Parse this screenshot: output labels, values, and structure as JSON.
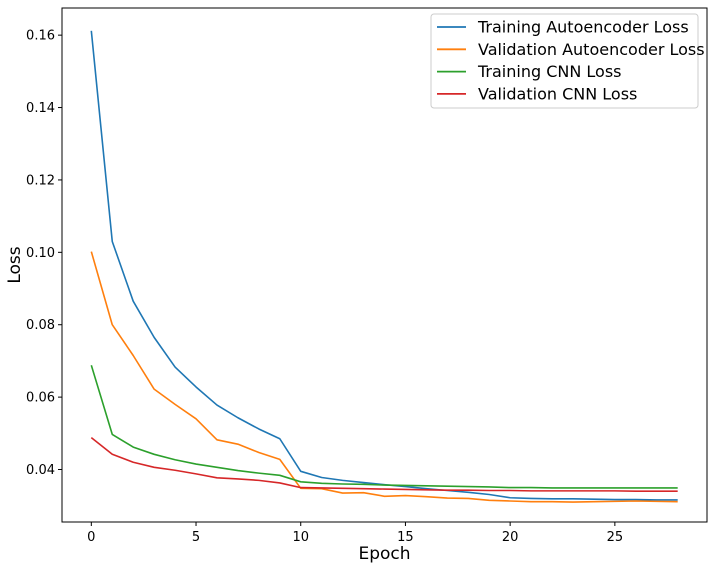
{
  "chart_data": {
    "type": "line",
    "xlabel": "Epoch",
    "ylabel": "Loss",
    "xlim": [
      -1.4,
      29.4
    ],
    "ylim": [
      0.0255,
      0.1675
    ],
    "xticks": [
      0,
      5,
      10,
      15,
      20,
      25
    ],
    "yticks": [
      0.04,
      0.06,
      0.08,
      0.1,
      0.12,
      0.14,
      0.16
    ],
    "grid": false,
    "legend_position": "top-right",
    "x": [
      0,
      1,
      2,
      3,
      4,
      5,
      6,
      7,
      8,
      9,
      10,
      11,
      12,
      13,
      14,
      15,
      16,
      17,
      18,
      19,
      20,
      21,
      22,
      23,
      24,
      25,
      26,
      27,
      28
    ],
    "series": [
      {
        "name": "Training Autoencoder Loss",
        "color": "#1f77b4",
        "values": [
          0.1612,
          0.103,
          0.0865,
          0.0765,
          0.0683,
          0.0628,
          0.0578,
          0.0543,
          0.0512,
          0.0485,
          0.0395,
          0.0378,
          0.037,
          0.0364,
          0.0358,
          0.0353,
          0.0347,
          0.0342,
          0.0337,
          0.0331,
          0.0322,
          0.032,
          0.0319,
          0.0319,
          0.0318,
          0.0317,
          0.0317,
          0.0316,
          0.0316
        ]
      },
      {
        "name": "Validation Autoencoder Loss",
        "color": "#ff7f0e",
        "values": [
          0.1002,
          0.08,
          0.0715,
          0.0622,
          0.058,
          0.054,
          0.0482,
          0.047,
          0.0447,
          0.0428,
          0.0348,
          0.0347,
          0.0335,
          0.0336,
          0.0326,
          0.0328,
          0.0325,
          0.0321,
          0.032,
          0.0315,
          0.0313,
          0.0311,
          0.0311,
          0.031,
          0.0311,
          0.0312,
          0.0313,
          0.0312,
          0.0311
        ]
      },
      {
        "name": "Training CNN Loss",
        "color": "#2ca02c",
        "values": [
          0.0688,
          0.0497,
          0.0462,
          0.0442,
          0.0427,
          0.0415,
          0.0406,
          0.0397,
          0.039,
          0.0384,
          0.0366,
          0.0362,
          0.036,
          0.0359,
          0.0357,
          0.0356,
          0.0355,
          0.0354,
          0.0353,
          0.0352,
          0.035,
          0.035,
          0.0349,
          0.0349,
          0.0349,
          0.0349,
          0.0349,
          0.0349,
          0.0349
        ]
      },
      {
        "name": "Validation CNN Loss",
        "color": "#d62728",
        "values": [
          0.0488,
          0.0442,
          0.042,
          0.0406,
          0.0398,
          0.0388,
          0.0377,
          0.0374,
          0.037,
          0.0363,
          0.035,
          0.0349,
          0.0348,
          0.0347,
          0.0346,
          0.0345,
          0.0344,
          0.0343,
          0.0343,
          0.0342,
          0.0342,
          0.0341,
          0.0341,
          0.0341,
          0.0341,
          0.0341,
          0.034,
          0.034,
          0.034
        ]
      }
    ]
  }
}
